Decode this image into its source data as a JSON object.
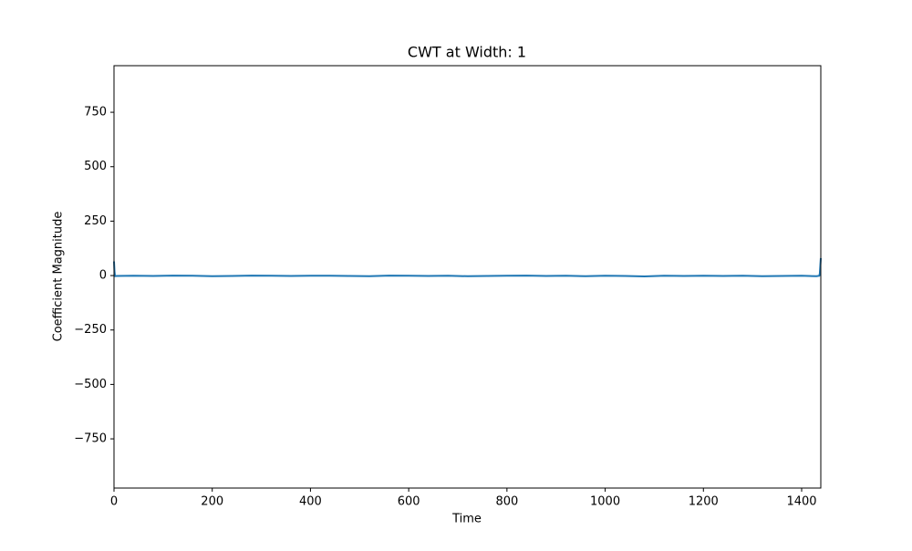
{
  "chart_data": {
    "type": "line",
    "title": "CWT at Width: 1",
    "xlabel": "Time",
    "ylabel": "Coefficient Magnitude",
    "x": [
      0,
      1,
      2,
      5,
      40,
      80,
      120,
      160,
      200,
      240,
      280,
      320,
      360,
      400,
      440,
      480,
      520,
      560,
      600,
      640,
      680,
      720,
      760,
      800,
      840,
      880,
      920,
      960,
      1000,
      1040,
      1080,
      1120,
      1160,
      1200,
      1240,
      1280,
      1320,
      1360,
      1400,
      1430,
      1436,
      1437,
      1438,
      1439
    ],
    "series": [
      {
        "name": "CWT",
        "color": "#1f77b4",
        "values": [
          65,
          20,
          -3,
          -2,
          -1,
          -2,
          0,
          -1,
          -3,
          -2,
          0,
          -1,
          -2,
          -1,
          -1,
          -2,
          -3,
          0,
          -1,
          -2,
          -1,
          -3,
          -2,
          -1,
          0,
          -2,
          -1,
          -3,
          -1,
          -2,
          -4,
          -1,
          -2,
          -1,
          -2,
          -1,
          -3,
          -2,
          -1,
          -3,
          -1,
          10,
          45,
          80
        ]
      }
    ],
    "xlim": [
      0,
      1439
    ],
    "ylim": [
      -976,
      964
    ],
    "xticks": [
      0,
      200,
      400,
      600,
      800,
      1000,
      1200,
      1400
    ],
    "yticks": [
      {
        "value": -750,
        "label": "−750"
      },
      {
        "value": -500,
        "label": "−500"
      },
      {
        "value": -250,
        "label": "−250"
      },
      0,
      250,
      500,
      750
    ],
    "grid": false
  }
}
